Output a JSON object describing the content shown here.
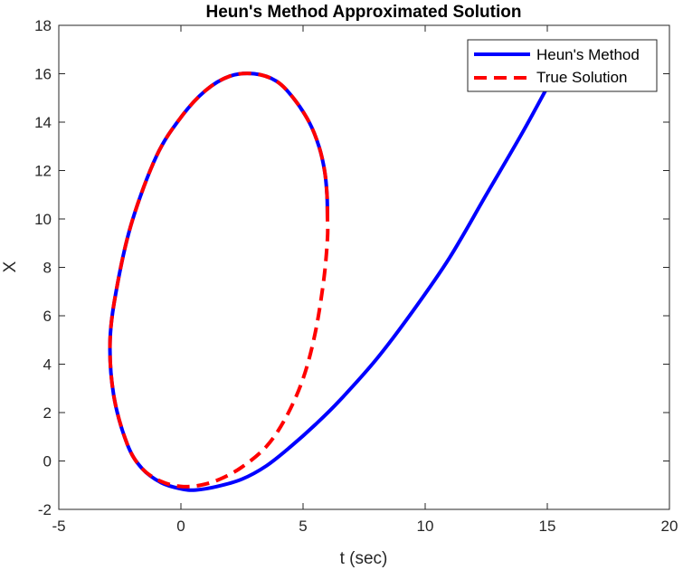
{
  "chart_data": {
    "type": "line",
    "title": "Heun's Method Approximated Solution",
    "xlabel": "t (sec)",
    "ylabel": "X",
    "xlim": [
      -5,
      20
    ],
    "ylim": [
      -2,
      18
    ],
    "xticks": [
      -5,
      0,
      5,
      10,
      15,
      20
    ],
    "yticks": [
      -2,
      0,
      2,
      4,
      6,
      8,
      10,
      12,
      14,
      16,
      18
    ],
    "grid": false,
    "legend_position": "top-right",
    "series": [
      {
        "name": "Heun's Method",
        "color": "#0000ff",
        "style": "solid",
        "points": [
          [
            6.0,
            10.0
          ],
          [
            5.98,
            11.0
          ],
          [
            5.88,
            12.0
          ],
          [
            5.65,
            13.0
          ],
          [
            5.25,
            14.0
          ],
          [
            4.6,
            15.0
          ],
          [
            3.9,
            15.7
          ],
          [
            3.0,
            16.0
          ],
          [
            2.0,
            15.9
          ],
          [
            1.0,
            15.3
          ],
          [
            0.0,
            14.2
          ],
          [
            -1.0,
            12.6
          ],
          [
            -2.0,
            9.9
          ],
          [
            -2.6,
            7.3
          ],
          [
            -2.9,
            5.0
          ],
          [
            -2.75,
            2.7
          ],
          [
            -2.2,
            0.7
          ],
          [
            -1.6,
            -0.3
          ],
          [
            -0.8,
            -0.9
          ],
          [
            0.0,
            -1.15
          ],
          [
            0.6,
            -1.2
          ],
          [
            1.5,
            -1.05
          ],
          [
            2.5,
            -0.75
          ],
          [
            3.5,
            -0.2
          ],
          [
            4.5,
            0.6
          ],
          [
            5.5,
            1.5
          ],
          [
            6.5,
            2.5
          ],
          [
            8.0,
            4.2
          ],
          [
            9.5,
            6.2
          ],
          [
            11.0,
            8.4
          ],
          [
            12.5,
            11.0
          ],
          [
            14.0,
            13.6
          ],
          [
            15.3,
            16.0
          ],
          [
            16.0,
            17.3
          ]
        ]
      },
      {
        "name": "True Solution",
        "color": "#ff0000",
        "style": "dashed",
        "points": [
          [
            6.0,
            10.0
          ],
          [
            5.98,
            11.0
          ],
          [
            5.88,
            12.0
          ],
          [
            5.65,
            13.0
          ],
          [
            5.25,
            14.0
          ],
          [
            4.6,
            15.0
          ],
          [
            3.9,
            15.7
          ],
          [
            3.0,
            16.0
          ],
          [
            2.0,
            15.9
          ],
          [
            1.0,
            15.3
          ],
          [
            0.0,
            14.2
          ],
          [
            -1.0,
            12.6
          ],
          [
            -2.0,
            9.9
          ],
          [
            -2.6,
            7.3
          ],
          [
            -2.9,
            5.0
          ],
          [
            -2.75,
            2.7
          ],
          [
            -2.2,
            0.7
          ],
          [
            -1.6,
            -0.3
          ],
          [
            -0.8,
            -0.85
          ],
          [
            0.0,
            -1.05
          ],
          [
            0.8,
            -1.0
          ],
          [
            1.6,
            -0.75
          ],
          [
            2.5,
            -0.25
          ],
          [
            3.5,
            0.6
          ],
          [
            4.3,
            1.8
          ],
          [
            5.0,
            3.4
          ],
          [
            5.5,
            5.3
          ],
          [
            5.85,
            7.5
          ],
          [
            6.0,
            9.2
          ],
          [
            6.0,
            10.0
          ]
        ]
      }
    ]
  }
}
